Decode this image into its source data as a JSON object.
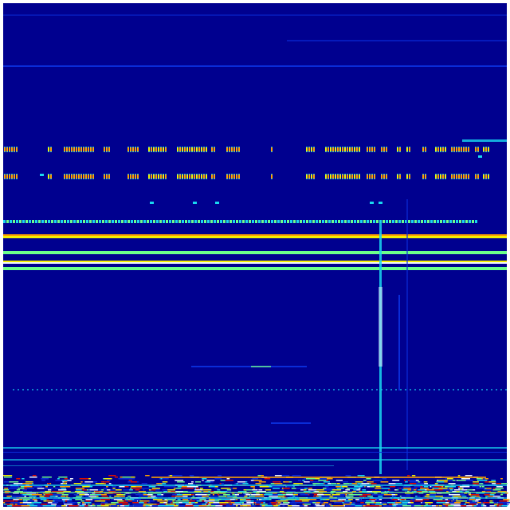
{
  "image": {
    "kind": "spectrogram",
    "colormap": "jet",
    "colors": {
      "background": "#00008f",
      "faint_line": "#0a2cd8",
      "cyan": "#19d7f0",
      "green": "#6cff8a",
      "yellow": "#f5f000",
      "orange": "#ffa000",
      "red": "#e01000",
      "white": "#f0f8ff"
    }
  }
}
